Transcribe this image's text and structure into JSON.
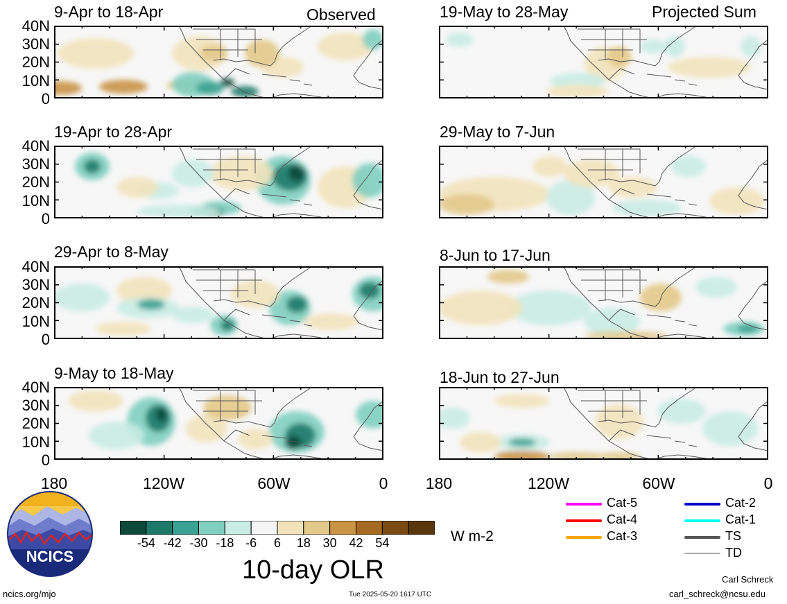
{
  "observed_label": "Observed",
  "projected_label": "Projected Sum",
  "left_panels": [
    {
      "period": "9-Apr to 18-Apr"
    },
    {
      "period": "19-Apr to 28-Apr"
    },
    {
      "period": "29-Apr to 8-May"
    },
    {
      "period": "9-May to 18-May"
    }
  ],
  "right_panels": [
    {
      "period": "19-May to 28-May"
    },
    {
      "period": "29-May to 7-Jun"
    },
    {
      "period": "8-Jun to 17-Jun"
    },
    {
      "period": "18-Jun to 27-Jun"
    }
  ],
  "y_ticks": [
    "40N",
    "30N",
    "20N",
    "10N",
    "0"
  ],
  "x_ticks": [
    "180",
    "120W",
    "60W",
    "0"
  ],
  "colorbar": {
    "colors": [
      "#0d4a3a",
      "#1d7a6a",
      "#3aa292",
      "#80cfc0",
      "#c9ece4",
      "#f5f5f5",
      "#f2e3bb",
      "#e3c98a",
      "#c99445",
      "#a66a22",
      "#7b4b12",
      "#5a360d"
    ],
    "tick_labels": [
      "-54",
      "-42",
      "-30",
      "-18",
      "-6",
      "6",
      "18",
      "30",
      "42",
      "54"
    ],
    "units": "W m-2",
    "title": "10-day OLR"
  },
  "storm_legend": [
    {
      "label": "Cat-5",
      "color": "#ff00ff"
    },
    {
      "label": "Cat-4",
      "color": "#ff0000"
    },
    {
      "label": "Cat-3",
      "color": "#ffa500"
    },
    {
      "label": "Cat-2",
      "color": "#0000cc"
    },
    {
      "label": "Cat-1",
      "color": "#00ffff"
    },
    {
      "label": "TS",
      "color": "#555555"
    },
    {
      "label": "TD",
      "color": "#aaaaaa"
    }
  ],
  "logo_text": "NCICS",
  "footer": {
    "url": "ncics.org/mjo",
    "timestamp": "Tue 2025-05-20 1617 UTC",
    "author": "Carl Schreck",
    "email": "carl_schreck@ncsu.edu"
  }
}
